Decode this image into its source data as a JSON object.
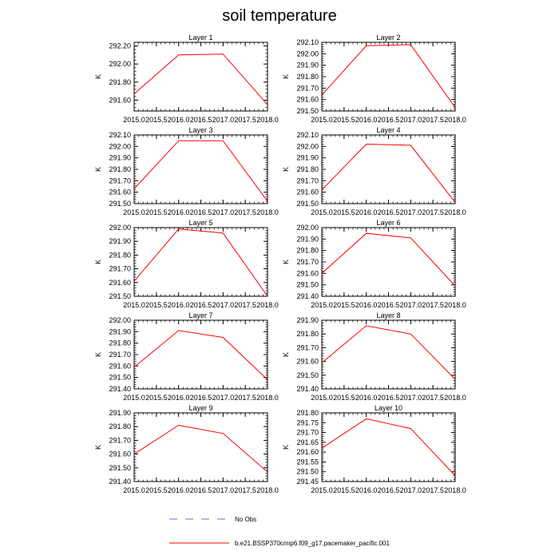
{
  "figure": {
    "title": "soil temperature"
  },
  "legend": {
    "entries": [
      {
        "label": "No Obs",
        "color": "#7b68c9",
        "style": "dashed"
      },
      {
        "label": "b.e21.BSSP370cmip6.f09_g17.pacemaker_pacific.001",
        "color": "#ff0000",
        "style": "solid"
      }
    ]
  },
  "chart_data": [
    {
      "type": "line",
      "title": "Layer 1",
      "ylabel": "K",
      "xlim": [
        2015.0,
        2018.0
      ],
      "x": [
        2015.0,
        2016.0,
        2017.0,
        2018.0
      ],
      "values": [
        291.67,
        292.1,
        292.11,
        291.55
      ],
      "ylim": [
        291.48,
        292.24
      ],
      "yticks": [
        "291.60",
        "291.80",
        "292.00",
        "292.20"
      ],
      "yticks_values": [
        291.6,
        291.8,
        292.0,
        292.2
      ],
      "xticks": [
        "2015.0",
        "2015.5",
        "2016.0",
        "2016.5",
        "2017.0",
        "2017.5",
        "2018.0"
      ],
      "color": "#ff0000"
    },
    {
      "type": "line",
      "title": "Layer 2",
      "ylabel": "K",
      "xlim": [
        2015.0,
        2018.0
      ],
      "x": [
        2015.0,
        2016.0,
        2017.0,
        2018.0
      ],
      "values": [
        291.64,
        292.07,
        292.08,
        291.53
      ],
      "ylim": [
        291.5,
        292.1
      ],
      "yticks": [
        "291.50",
        "291.60",
        "291.70",
        "291.80",
        "291.90",
        "292.00",
        "292.10"
      ],
      "yticks_values": [
        291.5,
        291.6,
        291.7,
        291.8,
        291.9,
        292.0,
        292.1
      ],
      "xticks": [
        "2015.0",
        "2015.5",
        "2016.0",
        "2016.5",
        "2017.0",
        "2017.5",
        "2018.0"
      ],
      "color": "#ff0000"
    },
    {
      "type": "line",
      "title": "Layer 3",
      "ylabel": "K",
      "xlim": [
        2015.0,
        2018.0
      ],
      "x": [
        2015.0,
        2016.0,
        2017.0,
        2018.0
      ],
      "values": [
        291.63,
        292.05,
        292.05,
        291.52
      ],
      "ylim": [
        291.5,
        292.1
      ],
      "yticks": [
        "291.50",
        "291.60",
        "291.70",
        "291.80",
        "291.90",
        "292.00",
        "292.10"
      ],
      "yticks_values": [
        291.5,
        291.6,
        291.7,
        291.8,
        291.9,
        292.0,
        292.1
      ],
      "xticks": [
        "2015.0",
        "2015.5",
        "2016.0",
        "2016.5",
        "2017.0",
        "2017.5",
        "2018.0"
      ],
      "color": "#ff0000"
    },
    {
      "type": "line",
      "title": "Layer 4",
      "ylabel": "K",
      "xlim": [
        2015.0,
        2018.0
      ],
      "x": [
        2015.0,
        2016.0,
        2017.0,
        2018.0
      ],
      "values": [
        291.62,
        292.02,
        292.01,
        291.51
      ],
      "ylim": [
        291.5,
        292.1
      ],
      "yticks": [
        "291.50",
        "291.60",
        "291.70",
        "291.80",
        "291.90",
        "292.00",
        "292.10"
      ],
      "yticks_values": [
        291.5,
        291.6,
        291.7,
        291.8,
        291.9,
        292.0,
        292.1
      ],
      "xticks": [
        "2015.0",
        "2015.5",
        "2016.0",
        "2016.5",
        "2017.0",
        "2017.5",
        "2018.0"
      ],
      "color": "#ff0000"
    },
    {
      "type": "line",
      "title": "Layer 5",
      "ylabel": "K",
      "xlim": [
        2015.0,
        2018.0
      ],
      "x": [
        2015.0,
        2016.0,
        2017.0,
        2018.0
      ],
      "values": [
        291.61,
        291.99,
        291.96,
        291.5
      ],
      "ylim": [
        291.5,
        292.0
      ],
      "yticks": [
        "291.50",
        "291.60",
        "291.70",
        "291.80",
        "291.90",
        "292.00"
      ],
      "yticks_values": [
        291.5,
        291.6,
        291.7,
        291.8,
        291.9,
        292.0
      ],
      "xticks": [
        "2015.0",
        "2015.5",
        "2016.0",
        "2016.5",
        "2017.0",
        "2017.5",
        "2018.0"
      ],
      "color": "#ff0000"
    },
    {
      "type": "line",
      "title": "Layer 6",
      "ylabel": "K",
      "xlim": [
        2015.0,
        2018.0
      ],
      "x": [
        2015.0,
        2016.0,
        2017.0,
        2018.0
      ],
      "values": [
        291.6,
        291.95,
        291.91,
        291.49
      ],
      "ylim": [
        291.4,
        292.0
      ],
      "yticks": [
        "291.40",
        "291.50",
        "291.60",
        "291.70",
        "291.80",
        "291.90",
        "292.00"
      ],
      "yticks_values": [
        291.4,
        291.5,
        291.6,
        291.7,
        291.8,
        291.9,
        292.0
      ],
      "xticks": [
        "2015.0",
        "2015.5",
        "2016.0",
        "2016.5",
        "2017.0",
        "2017.5",
        "2018.0"
      ],
      "color": "#ff0000"
    },
    {
      "type": "line",
      "title": "Layer 7",
      "ylabel": "K",
      "xlim": [
        2015.0,
        2018.0
      ],
      "x": [
        2015.0,
        2016.0,
        2017.0,
        2018.0
      ],
      "values": [
        291.59,
        291.91,
        291.85,
        291.48
      ],
      "ylim": [
        291.4,
        292.0
      ],
      "yticks": [
        "291.40",
        "291.50",
        "291.60",
        "291.70",
        "291.80",
        "291.90",
        "292.00"
      ],
      "yticks_values": [
        291.4,
        291.5,
        291.6,
        291.7,
        291.8,
        291.9,
        292.0
      ],
      "xticks": [
        "2015.0",
        "2015.5",
        "2016.0",
        "2016.5",
        "2017.0",
        "2017.5",
        "2018.0"
      ],
      "color": "#ff0000"
    },
    {
      "type": "line",
      "title": "Layer 8",
      "ylabel": "K",
      "xlim": [
        2015.0,
        2018.0
      ],
      "x": [
        2015.0,
        2016.0,
        2017.0,
        2018.0
      ],
      "values": [
        291.59,
        291.86,
        291.8,
        291.47
      ],
      "ylim": [
        291.4,
        291.9
      ],
      "yticks": [
        "291.40",
        "291.50",
        "291.60",
        "291.70",
        "291.80",
        "291.90"
      ],
      "yticks_values": [
        291.4,
        291.5,
        291.6,
        291.7,
        291.8,
        291.9
      ],
      "xticks": [
        "2015.0",
        "2015.5",
        "2016.0",
        "2016.5",
        "2017.0",
        "2017.5",
        "2018.0"
      ],
      "color": "#ff0000"
    },
    {
      "type": "line",
      "title": "Layer 9",
      "ylabel": "K",
      "xlim": [
        2015.0,
        2018.0
      ],
      "x": [
        2015.0,
        2016.0,
        2017.0,
        2018.0
      ],
      "values": [
        291.6,
        291.81,
        291.75,
        291.47
      ],
      "ylim": [
        291.4,
        291.9
      ],
      "yticks": [
        "291.40",
        "291.50",
        "291.60",
        "291.70",
        "291.80",
        "291.90"
      ],
      "yticks_values": [
        291.4,
        291.5,
        291.6,
        291.7,
        291.8,
        291.9
      ],
      "xticks": [
        "2015.0",
        "2015.5",
        "2016.0",
        "2016.5",
        "2017.0",
        "2017.5",
        "2018.0"
      ],
      "color": "#ff0000"
    },
    {
      "type": "line",
      "title": "Layer 10",
      "ylabel": "K",
      "xlim": [
        2015.0,
        2018.0
      ],
      "x": [
        2015.0,
        2016.0,
        2017.0,
        2018.0
      ],
      "values": [
        291.62,
        291.77,
        291.72,
        291.48
      ],
      "ylim": [
        291.45,
        291.8
      ],
      "yticks": [
        "291.45",
        "291.50",
        "291.55",
        "291.60",
        "291.65",
        "291.70",
        "291.75",
        "291.80"
      ],
      "yticks_values": [
        291.45,
        291.5,
        291.55,
        291.6,
        291.65,
        291.7,
        291.75,
        291.8
      ],
      "xticks": [
        "2015.0",
        "2015.5",
        "2016.0",
        "2016.5",
        "2017.0",
        "2017.5",
        "2018.0"
      ],
      "color": "#ff0000"
    }
  ]
}
